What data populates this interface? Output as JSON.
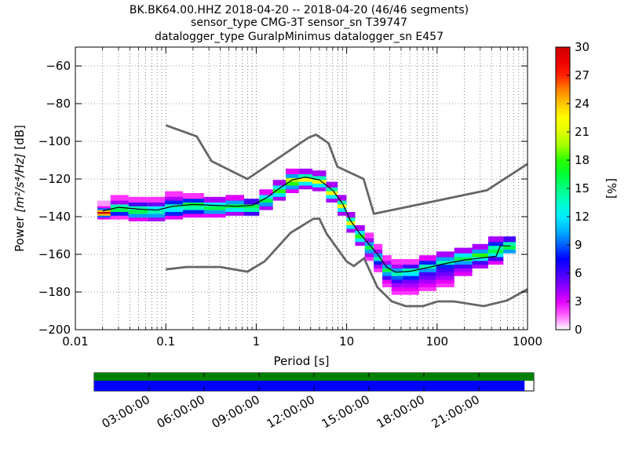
{
  "title_lines": [
    "BK.BK64.00.HHZ   2018-04-20 -- 2018-04-20  (46/46 segments)",
    "sensor_type CMG-3T sensor_sn T39747",
    "datalogger_type GuralpMinimus datalogger_sn E457"
  ],
  "chart_data": {
    "type": "heatmap",
    "xlabel": "Period [s]",
    "ylabel_prefix": "Power ",
    "ylabel_math": "[m²/s⁴/Hz]",
    "ylabel_suffix": " [dB]",
    "xscale": "log",
    "xlim": [
      0.01,
      1000
    ],
    "ylim": [
      -200,
      -50
    ],
    "xticks": [
      0.01,
      0.1,
      1,
      10,
      100,
      1000
    ],
    "xtick_labels": [
      "0.01",
      "0.1",
      "1",
      "10",
      "100",
      "1000"
    ],
    "yticks": [
      -200,
      -180,
      -160,
      -140,
      -120,
      -100,
      -80,
      -60
    ],
    "ytick_labels": [
      "−200",
      "−180",
      "−160",
      "−140",
      "−120",
      "−100",
      "−80",
      "−60"
    ],
    "grid": true,
    "colorbar": {
      "label": "[%]",
      "min": 0,
      "max": 30,
      "ticks": [
        0,
        3,
        6,
        9,
        12,
        15,
        18,
        21,
        24,
        27,
        30
      ],
      "colormap_stops": [
        "#ffffff",
        "#ff00ff",
        "#7000ff",
        "#0000ff",
        "#00a0ff",
        "#00ffff",
        "#00ff80",
        "#00ff00",
        "#c8ff00",
        "#ffff00",
        "#ffa000",
        "#ff0000",
        "#d00000"
      ]
    },
    "noise_models": [
      {
        "name": "NHNM",
        "color": "#666666",
        "points": [
          [
            0.1,
            -91.5
          ],
          [
            0.22,
            -97.4
          ],
          [
            0.32,
            -110.5
          ],
          [
            0.8,
            -120
          ],
          [
            3.8,
            -98
          ],
          [
            4.6,
            -96.5
          ],
          [
            6.3,
            -101
          ],
          [
            7.9,
            -113.5
          ],
          [
            15.4,
            -120
          ],
          [
            20,
            -138.5
          ],
          [
            354.8,
            -126
          ],
          [
            1000,
            -112
          ]
        ]
      },
      {
        "name": "NLNM",
        "color": "#666666",
        "points": [
          [
            0.1,
            -168
          ],
          [
            0.17,
            -166.7
          ],
          [
            0.4,
            -166.7
          ],
          [
            0.8,
            -169.2
          ],
          [
            1.24,
            -163.7
          ],
          [
            2.4,
            -148.6
          ],
          [
            4.3,
            -141.1
          ],
          [
            5,
            -141.1
          ],
          [
            6,
            -149
          ],
          [
            10,
            -163.8
          ],
          [
            12,
            -166.2
          ],
          [
            15.6,
            -162.1
          ],
          [
            21.9,
            -177.5
          ],
          [
            31.6,
            -185
          ],
          [
            45,
            -187.5
          ],
          [
            70,
            -187.5
          ],
          [
            101,
            -185
          ],
          [
            154,
            -185
          ],
          [
            328,
            -187.5
          ],
          [
            600,
            -184.4
          ],
          [
            1000,
            -178.5
          ]
        ]
      }
    ],
    "mode_line": {
      "color": "#000000",
      "points": [
        [
          0.02,
          -137
        ],
        [
          0.03,
          -135
        ],
        [
          0.05,
          -136
        ],
        [
          0.08,
          -136.5
        ],
        [
          0.12,
          -134.5
        ],
        [
          0.2,
          -133.5
        ],
        [
          0.35,
          -134
        ],
        [
          0.6,
          -134.5
        ],
        [
          0.9,
          -134
        ],
        [
          1.3,
          -130
        ],
        [
          1.8,
          -125
        ],
        [
          2.5,
          -120.5
        ],
        [
          3.5,
          -119
        ],
        [
          5,
          -120.5
        ],
        [
          7,
          -126
        ],
        [
          9,
          -133
        ],
        [
          11,
          -142
        ],
        [
          14,
          -149
        ],
        [
          18,
          -155
        ],
        [
          22,
          -160
        ],
        [
          28,
          -167
        ],
        [
          35,
          -169.5
        ],
        [
          50,
          -169
        ],
        [
          80,
          -167
        ],
        [
          120,
          -165
        ],
        [
          200,
          -163
        ],
        [
          300,
          -162
        ],
        [
          450,
          -161
        ],
        [
          500,
          -155.5
        ],
        [
          650,
          -155.5
        ]
      ]
    },
    "psd_density": [
      {
        "period": 0.02,
        "power": [
          -140,
          -139,
          -138,
          -137,
          -136,
          -135,
          -134,
          -133
        ],
        "percent": [
          3,
          9,
          24,
          30,
          24,
          9,
          3,
          1
        ]
      },
      {
        "period": 0.03,
        "power": [
          -140,
          -138,
          -136,
          -134,
          -132,
          -130
        ],
        "percent": [
          2,
          8,
          16,
          14,
          4,
          2
        ]
      },
      {
        "period": 0.05,
        "power": [
          -141,
          -139,
          -137,
          -135,
          -133,
          -131
        ],
        "percent": [
          3,
          10,
          16,
          14,
          6,
          2
        ]
      },
      {
        "period": 0.08,
        "power": [
          -141,
          -139,
          -137,
          -135,
          -133,
          -131
        ],
        "percent": [
          4,
          10,
          14,
          12,
          5,
          2
        ]
      },
      {
        "period": 0.12,
        "power": [
          -140,
          -138,
          -136,
          -134,
          -132,
          -130,
          -128
        ],
        "percent": [
          3,
          8,
          12,
          14,
          8,
          4,
          2
        ]
      },
      {
        "period": 0.2,
        "power": [
          -139,
          -137,
          -135,
          -133,
          -131,
          -129
        ],
        "percent": [
          3,
          8,
          14,
          16,
          8,
          2
        ]
      },
      {
        "period": 0.35,
        "power": [
          -139,
          -137,
          -135,
          -133,
          -131
        ],
        "percent": [
          3,
          10,
          16,
          12,
          4
        ]
      },
      {
        "period": 0.6,
        "power": [
          -138,
          -136,
          -134,
          -132,
          -130
        ],
        "percent": [
          4,
          12,
          16,
          10,
          3
        ]
      },
      {
        "period": 0.9,
        "power": [
          -138,
          -136,
          -134,
          -132
        ],
        "percent": [
          6,
          14,
          16,
          6
        ]
      },
      {
        "period": 1.3,
        "power": [
          -135,
          -133,
          -131,
          -129,
          -127
        ],
        "percent": [
          4,
          10,
          16,
          12,
          3
        ]
      },
      {
        "period": 1.8,
        "power": [
          -130,
          -128,
          -126,
          -124,
          -122
        ],
        "percent": [
          4,
          12,
          18,
          12,
          4
        ]
      },
      {
        "period": 2.5,
        "power": [
          -126,
          -124,
          -122,
          -120,
          -118,
          -116
        ],
        "percent": [
          3,
          10,
          18,
          20,
          10,
          3
        ]
      },
      {
        "period": 3.5,
        "power": [
          -124,
          -122,
          -120,
          -118,
          -116
        ],
        "percent": [
          4,
          12,
          22,
          14,
          4
        ]
      },
      {
        "period": 5,
        "power": [
          -125,
          -123,
          -121,
          -119,
          -117
        ],
        "percent": [
          4,
          12,
          22,
          14,
          4
        ]
      },
      {
        "period": 7,
        "power": [
          -131,
          -129,
          -127,
          -125,
          -123
        ],
        "percent": [
          4,
          12,
          22,
          14,
          4
        ]
      },
      {
        "period": 9,
        "power": [
          -138,
          -136,
          -134,
          -132,
          -130
        ],
        "percent": [
          4,
          12,
          22,
          14,
          4
        ]
      },
      {
        "period": 11,
        "power": [
          -147,
          -145,
          -143,
          -141,
          -139
        ],
        "percent": [
          4,
          12,
          22,
          14,
          4
        ]
      },
      {
        "period": 14,
        "power": [
          -154,
          -152,
          -150,
          -148,
          -146
        ],
        "percent": [
          4,
          12,
          18,
          12,
          4
        ]
      },
      {
        "period": 18,
        "power": [
          -162,
          -160,
          -158,
          -156,
          -154,
          -152,
          -150
        ],
        "percent": [
          2,
          4,
          10,
          16,
          10,
          4,
          2
        ]
      },
      {
        "period": 22,
        "power": [
          -168,
          -166,
          -164,
          -162,
          -160,
          -158,
          -156
        ],
        "percent": [
          2,
          4,
          8,
          14,
          10,
          4,
          2
        ]
      },
      {
        "period": 28,
        "power": [
          -176,
          -174,
          -172,
          -170,
          -168,
          -166,
          -164,
          -162
        ],
        "percent": [
          2,
          3,
          6,
          10,
          16,
          10,
          4,
          2
        ]
      },
      {
        "period": 35,
        "power": [
          -180,
          -178,
          -176,
          -174,
          -172,
          -170,
          -168,
          -166,
          -164
        ],
        "percent": [
          2,
          3,
          4,
          6,
          9,
          14,
          10,
          4,
          2
        ]
      },
      {
        "period": 50,
        "power": [
          -180,
          -178,
          -176,
          -174,
          -172,
          -170,
          -168,
          -166,
          -164
        ],
        "percent": [
          2,
          3,
          4,
          5,
          8,
          12,
          14,
          6,
          2
        ]
      },
      {
        "period": 80,
        "power": [
          -178,
          -176,
          -174,
          -172,
          -170,
          -168,
          -166,
          -164,
          -162
        ],
        "percent": [
          2,
          3,
          4,
          5,
          6,
          10,
          14,
          8,
          3
        ]
      },
      {
        "period": 120,
        "power": [
          -176,
          -174,
          -172,
          -170,
          -168,
          -166,
          -164,
          -162,
          -160
        ],
        "percent": [
          2,
          3,
          4,
          5,
          6,
          8,
          14,
          10,
          4
        ]
      },
      {
        "period": 200,
        "power": [
          -170,
          -168,
          -166,
          -164,
          -162,
          -160,
          -158
        ],
        "percent": [
          3,
          4,
          6,
          10,
          16,
          12,
          4
        ]
      },
      {
        "period": 300,
        "power": [
          -166,
          -164,
          -162,
          -160,
          -158,
          -156
        ],
        "percent": [
          4,
          6,
          12,
          18,
          10,
          4
        ]
      },
      {
        "period": 450,
        "power": [
          -164,
          -162,
          -160,
          -158,
          -156,
          -154,
          -152
        ],
        "percent": [
          3,
          6,
          12,
          16,
          14,
          8,
          4
        ]
      },
      {
        "period": 650,
        "power": [
          -158,
          -156,
          -154,
          -152
        ],
        "percent": [
          10,
          16,
          14,
          6
        ]
      }
    ],
    "data_coverage": {
      "time_ticks": [
        "03:00:00",
        "06:00:00",
        "09:00:00",
        "12:00:00",
        "15:00:00",
        "18:00:00",
        "21:00:00"
      ],
      "data_bar_color": "#008000",
      "psd_bar_color": "#0000ff",
      "data_fraction": 1.0,
      "psd_fraction": 0.979
    }
  }
}
